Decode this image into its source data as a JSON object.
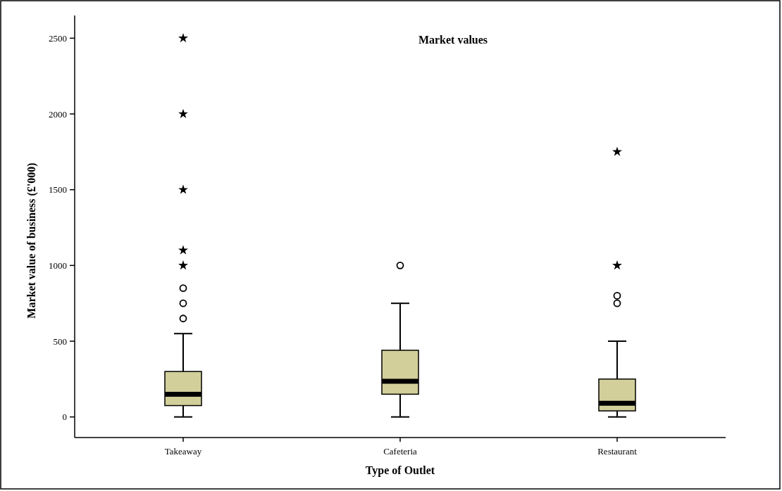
{
  "chart_data": {
    "type": "box",
    "title": "Market values",
    "xlabel": "Type of Outlet",
    "ylabel": "Market value of business (£'000)",
    "categories": [
      "Takeaway",
      "Cafeteria",
      "Restaurant"
    ],
    "color": "#d3cf9a",
    "boxes": [
      {
        "low": 0,
        "q1": 75,
        "median": 150,
        "q3": 300,
        "high": 550,
        "outliers": [
          650,
          750,
          850,
          1000,
          1100,
          1500,
          2000,
          2500
        ]
      },
      {
        "low": 0,
        "q1": 150,
        "median": 235,
        "q3": 440,
        "high": 750,
        "outliers": [
          1000
        ]
      },
      {
        "low": 0,
        "q1": 40,
        "median": 90,
        "q3": 250,
        "high": 500,
        "outliers": [
          750,
          800,
          1000,
          1750
        ]
      }
    ],
    "ylim": [
      -136,
      2650
    ],
    "yticks": [
      0,
      500,
      1000,
      1500,
      2000,
      2500
    ],
    "grid": false
  }
}
